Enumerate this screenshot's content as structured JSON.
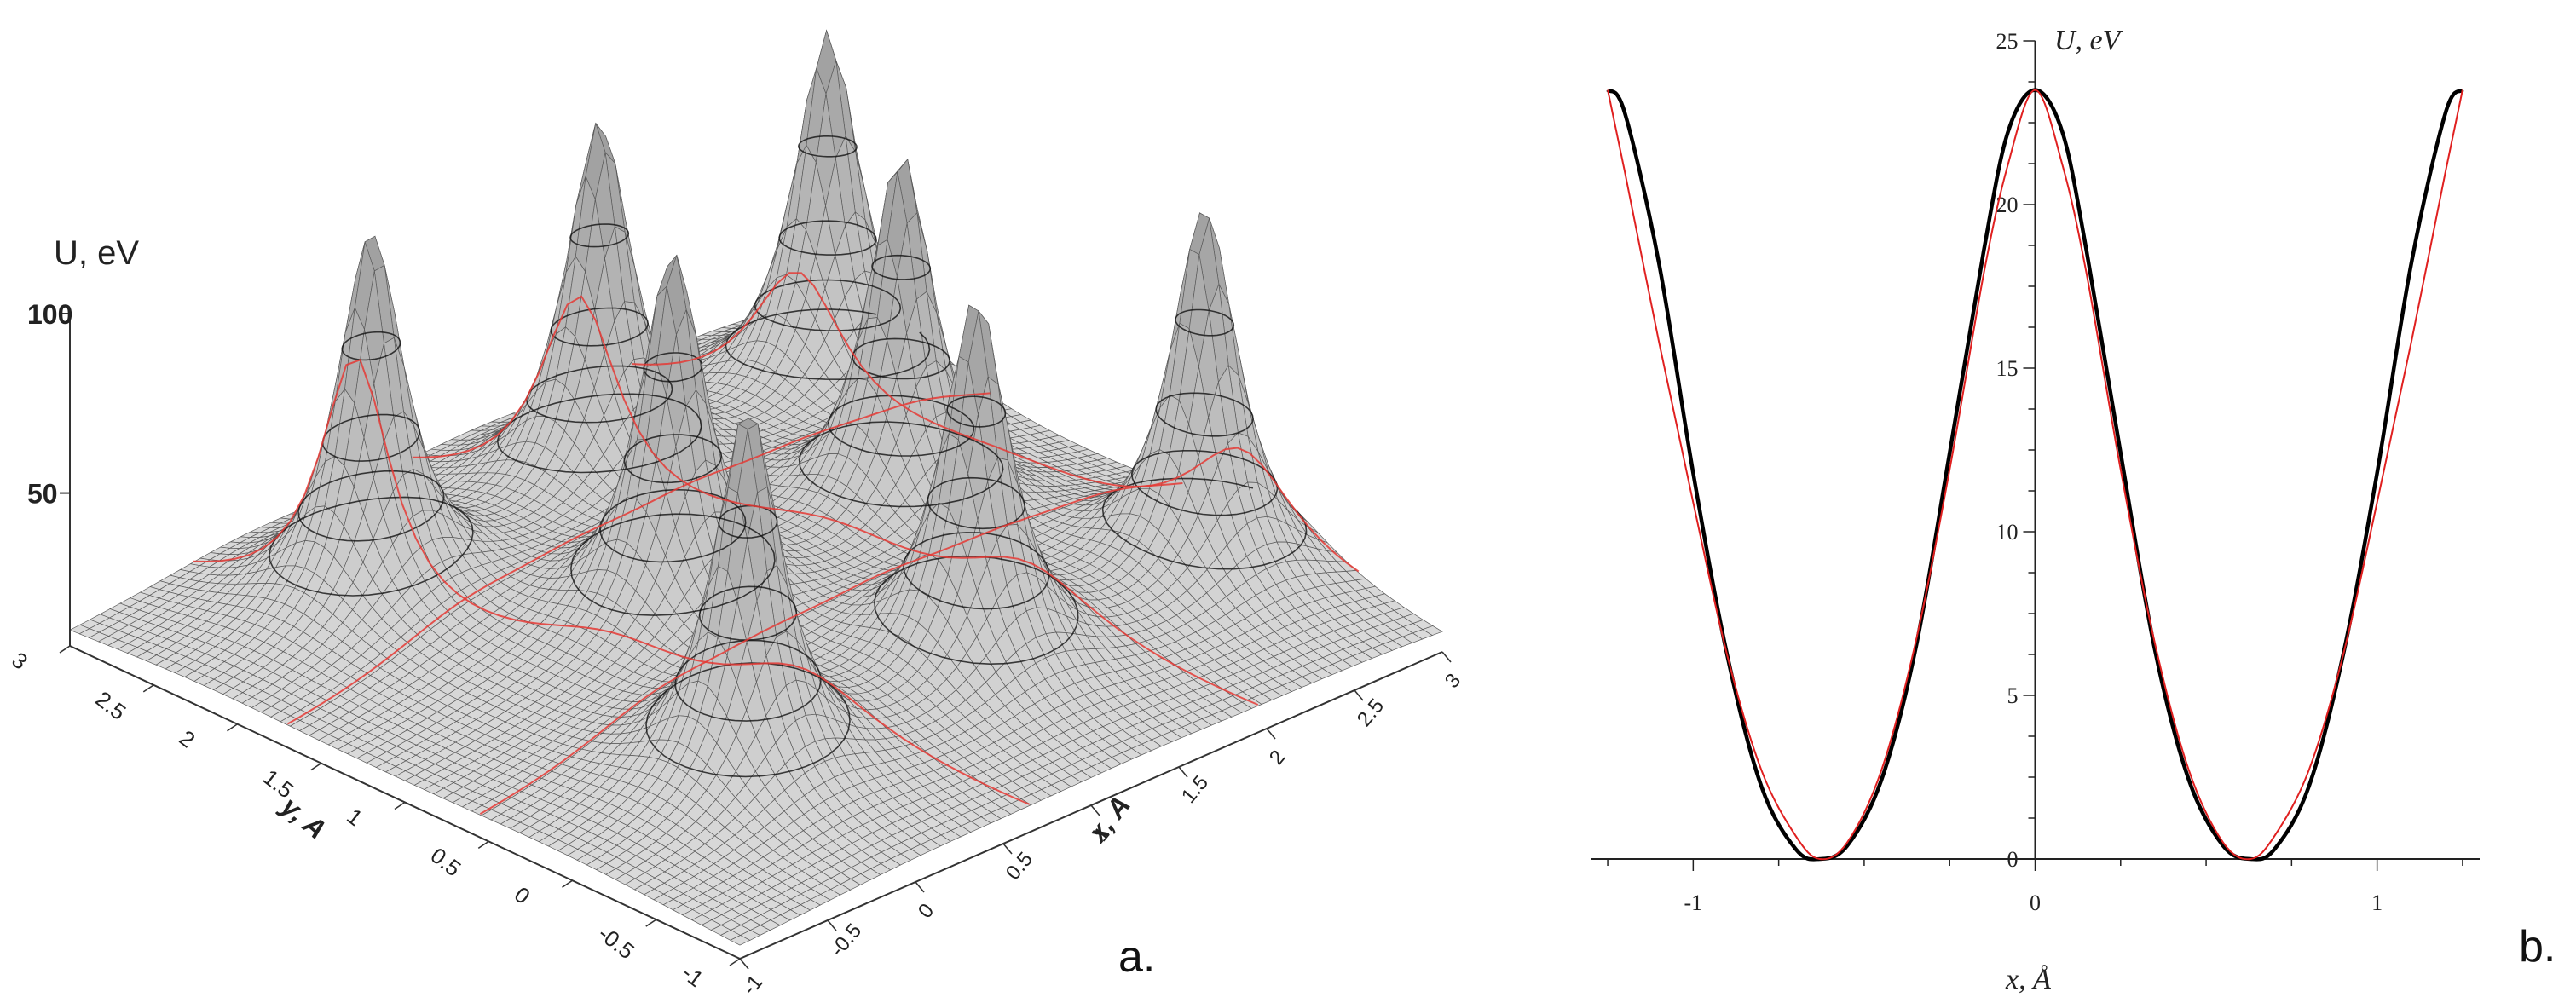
{
  "chart_data": [
    {
      "panel_label": "a.",
      "type": "surface",
      "zlabel": "U, eV",
      "xlabel": "x, A",
      "ylabel": "y, A",
      "z_ticks": [
        "50",
        "100"
      ],
      "x_ticks": [
        "-1",
        "-0.5",
        "0",
        "0.5",
        "1",
        "1.5",
        "2",
        "2.5",
        "3"
      ],
      "y_ticks": [
        "-1",
        "-0.5",
        "0",
        "0.5",
        "1",
        "1.5",
        "2",
        "2.5",
        "3"
      ],
      "xlim": [
        -1,
        3
      ],
      "ylim": [
        -1,
        3
      ],
      "peak_height": 100,
      "peaks_xy": [
        [
          0,
          0
        ],
        [
          1.3,
          0
        ],
        [
          2.6,
          0
        ],
        [
          0.65,
          1.13
        ],
        [
          1.95,
          1.13
        ],
        [
          0,
          2.25
        ],
        [
          1.3,
          2.25
        ],
        [
          2.6,
          2.25
        ]
      ],
      "colors": {
        "mesh": "#555555",
        "contour": "#111111",
        "red_lines": "#e53935"
      }
    },
    {
      "panel_label": "b.",
      "type": "line",
      "ylabel": "U, eV",
      "xlabel": "x, Å",
      "xlim": [
        -1.3,
        1.3
      ],
      "ylim": [
        0,
        25
      ],
      "x_ticks": [
        "-1",
        "0",
        "1"
      ],
      "y_ticks": [
        "0",
        "5",
        "10",
        "15",
        "20",
        "25"
      ],
      "series": [
        {
          "color": "#000000",
          "x": [
            -1.25,
            -1.2,
            -1.1,
            -1.0,
            -0.9,
            -0.8,
            -0.7,
            -0.63,
            -0.55,
            -0.45,
            -0.35,
            -0.25,
            -0.15,
            -0.08,
            0,
            0.08,
            0.15,
            0.25,
            0.35,
            0.45,
            0.55,
            0.63,
            0.7,
            0.8,
            0.9,
            1.0,
            1.1,
            1.2,
            1.25
          ],
          "y": [
            23.5,
            22.8,
            18.2,
            11.8,
            6.2,
            2.2,
            0.3,
            0.0,
            0.4,
            2.4,
            6.4,
            12.4,
            18.6,
            22.2,
            23.5,
            22.2,
            18.6,
            12.4,
            6.4,
            2.4,
            0.4,
            0.0,
            0.3,
            2.2,
            6.2,
            11.8,
            18.2,
            22.8,
            23.5
          ]
        },
        {
          "color": "#e02020",
          "x": [
            -1.25,
            -1.2,
            -1.1,
            -1.0,
            -0.9,
            -0.8,
            -0.7,
            -0.63,
            -0.55,
            -0.45,
            -0.35,
            -0.25,
            -0.15,
            -0.08,
            0,
            0.08,
            0.15,
            0.25,
            0.35,
            0.45,
            0.55,
            0.63,
            0.7,
            0.8,
            0.9,
            1.0,
            1.1,
            1.2,
            1.25
          ],
          "y": [
            23.5,
            21.0,
            15.8,
            10.9,
            6.2,
            2.7,
            0.7,
            0.0,
            0.5,
            2.7,
            6.6,
            11.9,
            17.9,
            21.2,
            23.5,
            21.2,
            17.9,
            11.9,
            6.6,
            2.7,
            0.5,
            0.0,
            0.7,
            2.7,
            6.2,
            10.9,
            15.8,
            21.0,
            23.5
          ]
        }
      ]
    }
  ]
}
